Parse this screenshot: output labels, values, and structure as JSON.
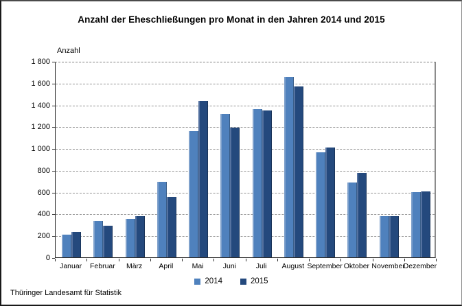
{
  "header": {
    "title": "Anzahl der Eheschließungen pro Monat in den Jahren 2014 und 2015"
  },
  "chart_data": {
    "type": "bar",
    "title": "Anzahl der Eheschließungen pro Monat in den Jahren 2014 und 2015",
    "xlabel": "",
    "ylabel": "Anzahl",
    "ylim": [
      0,
      1800
    ],
    "ytick_step": 200,
    "ytick_labels": [
      "0",
      "200",
      "400",
      "600",
      "800",
      "1 000",
      "1 200",
      "1 400",
      "1 600",
      "1 800"
    ],
    "grid": true,
    "legend_position": "bottom",
    "categories": [
      "Januar",
      "Februar",
      "März",
      "April",
      "Mai",
      "Juni",
      "Juli",
      "August",
      "September",
      "Oktober",
      "November",
      "Dezember"
    ],
    "series": [
      {
        "name": "2014",
        "color": "#4F81BD",
        "highlight": "#7FA1CC",
        "values": [
          205,
          335,
          355,
          690,
          1160,
          1315,
          1360,
          1655,
          965,
          685,
          375,
          595
        ]
      },
      {
        "name": "2015",
        "color": "#24497D",
        "highlight": "#5572A0",
        "values": [
          230,
          290,
          380,
          555,
          1435,
          1190,
          1345,
          1565,
          1010,
          775,
          375,
          605
        ]
      }
    ]
  },
  "footer": {
    "source": "Thüringer Landesamt für Statistik"
  }
}
